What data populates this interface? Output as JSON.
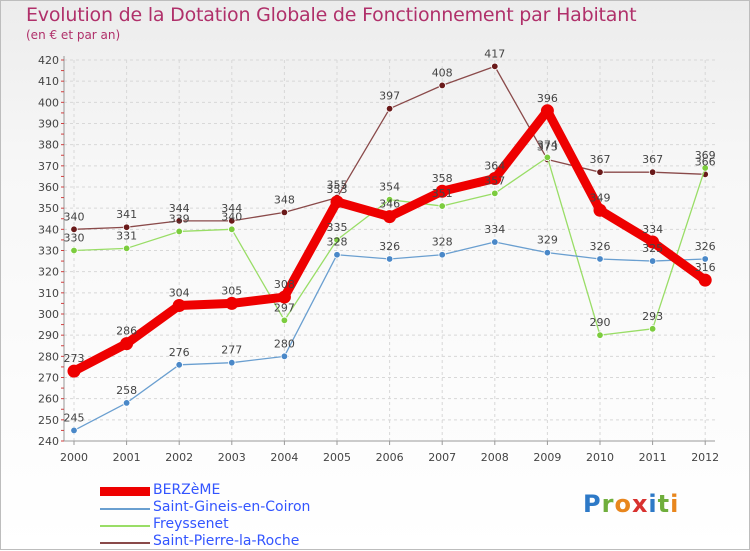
{
  "header": {
    "title": "Evolution de la Dotation Globale de Fonctionnement par Habitant",
    "subtitle": "(en € et par an)"
  },
  "logo": {
    "text": "Proxiti",
    "letters": [
      "P",
      "r",
      "o",
      "x",
      "i",
      "t",
      "i"
    ]
  },
  "chart_data": {
    "type": "line",
    "title": "Evolution de la Dotation Globale de Fonctionnement par Habitant",
    "subtitle": "(en € et par an)",
    "xlabel": "",
    "ylabel": "",
    "ylim": [
      240,
      420
    ],
    "yticks": [
      240,
      250,
      260,
      270,
      280,
      290,
      300,
      310,
      320,
      330,
      340,
      350,
      360,
      370,
      380,
      390,
      400,
      410,
      420
    ],
    "grid": true,
    "legend_position": "bottom-left",
    "categories": [
      "2000",
      "2001",
      "2002",
      "2003",
      "2004",
      "2005",
      "2006",
      "2007",
      "2008",
      "2009",
      "2010",
      "2011",
      "2012"
    ],
    "series": [
      {
        "name": "BERZèME",
        "color": "#ee0000",
        "point_color": "#ee0000",
        "style": "thick",
        "values": [
          273,
          286,
          304,
          305,
          308,
          353,
          346,
          358,
          364,
          396,
          349,
          334,
          316
        ]
      },
      {
        "name": "Saint-Gineis-en-Coiron",
        "color": "#6a9fd0",
        "point_color": "#4a88c8",
        "style": "thin",
        "values": [
          245,
          258,
          276,
          277,
          280,
          328,
          326,
          328,
          334,
          329,
          326,
          325,
          326
        ]
      },
      {
        "name": "Freyssenet",
        "color": "#99dd66",
        "point_color": "#7ccc3e",
        "style": "thin",
        "values": [
          330,
          331,
          339,
          340,
          297,
          335,
          354,
          351,
          357,
          374,
          290,
          293,
          369
        ]
      },
      {
        "name": "Saint-Pierre-la-Roche",
        "color": "#8a4a4a",
        "point_color": "#6a1a1a",
        "style": "thin",
        "values": [
          340,
          341,
          344,
          344,
          348,
          355,
          397,
          408,
          417,
          373,
          367,
          367,
          366
        ]
      }
    ]
  }
}
